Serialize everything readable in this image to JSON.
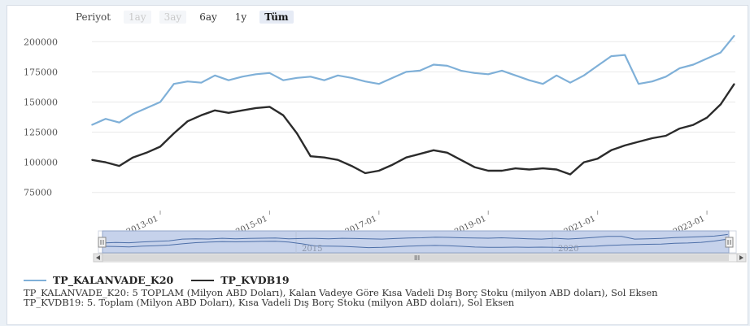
{
  "period": {
    "label": "Periyot",
    "buttons": [
      {
        "label": "1ay",
        "state": "disabled"
      },
      {
        "label": "3ay",
        "state": "disabled"
      },
      {
        "label": "6ay",
        "state": "normal"
      },
      {
        "label": "1y",
        "state": "normal"
      },
      {
        "label": "Tüm",
        "state": "active"
      }
    ]
  },
  "colors": {
    "series1": "#7fb0d8",
    "series2": "#2b2b2b",
    "grid": "#e9e9e9",
    "navigator_mask": "#c3d0ea",
    "navigator_border": "#8fa3c8"
  },
  "chart_data": {
    "type": "line",
    "ylim": [
      60000,
      215000
    ],
    "yticks": [
      75000,
      100000,
      125000,
      150000,
      175000,
      200000
    ],
    "ytick_labels": [
      "75000",
      "100000",
      "125000",
      "150000",
      "175000",
      "200000"
    ],
    "xlim": [
      2011.75,
      2023.52
    ],
    "xticks": [
      2013,
      2015,
      2017,
      2019,
      2021,
      2023
    ],
    "xtick_labels": [
      "2013-01",
      "2015-01",
      "2017-01",
      "2019-01",
      "2021-01",
      "2023-01"
    ],
    "grid": true,
    "legend_position": "bottom-left",
    "series": [
      {
        "name": "TP_KALANVADE_K20",
        "x": [
          2011.75,
          2012.0,
          2012.25,
          2012.5,
          2012.75,
          2013.0,
          2013.25,
          2013.5,
          2013.75,
          2014.0,
          2014.25,
          2014.5,
          2014.75,
          2015.0,
          2015.25,
          2015.5,
          2015.75,
          2016.0,
          2016.25,
          2016.5,
          2016.75,
          2017.0,
          2017.25,
          2017.5,
          2017.75,
          2018.0,
          2018.25,
          2018.5,
          2018.75,
          2019.0,
          2019.25,
          2019.5,
          2019.75,
          2020.0,
          2020.25,
          2020.5,
          2020.75,
          2021.0,
          2021.25,
          2021.5,
          2021.75,
          2022.0,
          2022.25,
          2022.5,
          2022.75,
          2023.0,
          2023.25,
          2023.5
        ],
        "y": [
          131000,
          136000,
          133000,
          140000,
          145000,
          150000,
          165000,
          167000,
          166000,
          172000,
          168000,
          171000,
          173000,
          174000,
          168000,
          170000,
          171000,
          168000,
          172000,
          170000,
          167000,
          165000,
          170000,
          175000,
          176000,
          181000,
          180000,
          176000,
          174000,
          173000,
          176000,
          172000,
          168000,
          165000,
          172000,
          166000,
          172000,
          180000,
          188000,
          189000,
          165000,
          167000,
          171000,
          178000,
          181000,
          186000,
          191000,
          205000
        ]
      },
      {
        "name": "TP_KVDB19",
        "x": [
          2011.75,
          2012.0,
          2012.25,
          2012.5,
          2012.75,
          2013.0,
          2013.25,
          2013.5,
          2013.75,
          2014.0,
          2014.25,
          2014.5,
          2014.75,
          2015.0,
          2015.25,
          2015.5,
          2015.75,
          2016.0,
          2016.25,
          2016.5,
          2016.75,
          2017.0,
          2017.25,
          2017.5,
          2017.75,
          2018.0,
          2018.25,
          2018.5,
          2018.75,
          2019.0,
          2019.25,
          2019.5,
          2019.75,
          2020.0,
          2020.25,
          2020.5,
          2020.75,
          2021.0,
          2021.25,
          2021.5,
          2021.75,
          2022.0,
          2022.25,
          2022.5,
          2022.75,
          2023.0,
          2023.25,
          2023.5
        ],
        "y": [
          102000,
          100000,
          97000,
          104000,
          108000,
          113000,
          124000,
          134000,
          139000,
          143000,
          141000,
          143000,
          145000,
          146000,
          139000,
          124000,
          105000,
          104000,
          102000,
          97000,
          91000,
          93000,
          98000,
          104000,
          107000,
          110000,
          108000,
          102000,
          96000,
          93000,
          93000,
          95000,
          94000,
          95000,
          94000,
          90000,
          100000,
          103000,
          110000,
          114000,
          117000,
          120000,
          122000,
          128000,
          131000,
          137000,
          148000,
          165000
        ]
      }
    ]
  },
  "navigator": {
    "labels": [
      "2015",
      "2020"
    ],
    "scroll_thumb_label": "III"
  },
  "notes": [
    "TP_KALANVADE_K20: 5 TOPLAM (Milyon ABD Doları), Kalan Vadeye Göre Kısa Vadeli Dış Borç Stoku (milyon ABD doları), Sol Eksen",
    "TP_KVDB19: 5. Toplam (Milyon ABD Doları), Kısa Vadeli Dış Borç Stoku (milyon ABD doları), Sol Eksen"
  ]
}
